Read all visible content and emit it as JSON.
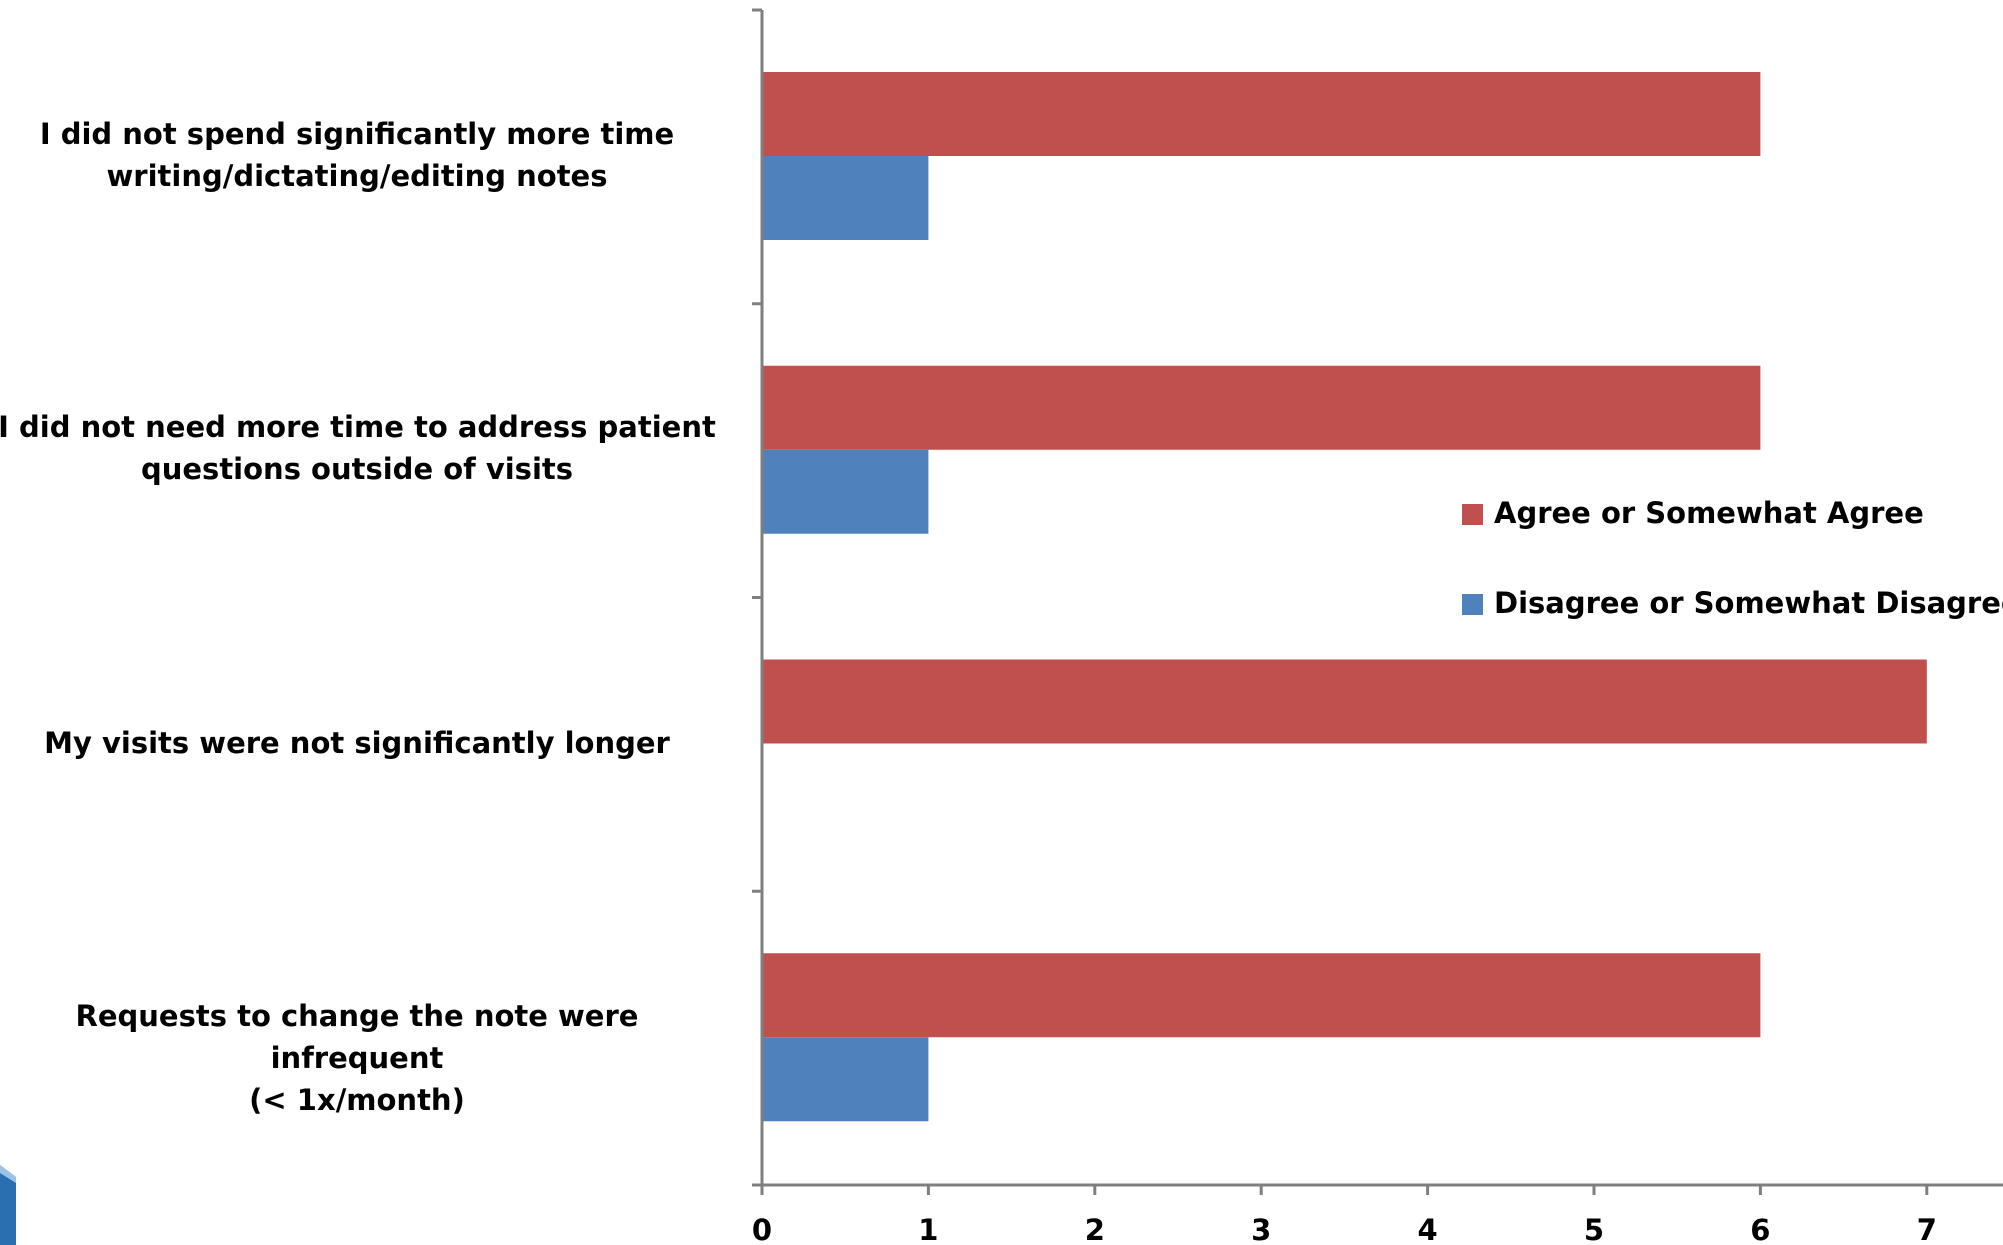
{
  "chart_data": {
    "type": "bar",
    "orientation": "horizontal",
    "categories": [
      "I did not spend significantly more time\nwriting/dictating/editing notes",
      "I did not need more time to address patient\nquestions outside of visits",
      "My visits were not significantly longer",
      "Requests to change the note were infrequent\n(< 1x/month)"
    ],
    "series": [
      {
        "name": "Agree or Somewhat Agree",
        "values": [
          6,
          6,
          7,
          6
        ],
        "color": "#c0504d"
      },
      {
        "name": "Disagree or Somewhat Disagree",
        "values": [
          1,
          1,
          0,
          1
        ],
        "color": "#4f81bd"
      }
    ],
    "xlim": [
      0,
      7
    ],
    "xticks": [
      "0",
      "1",
      "2",
      "3",
      "4",
      "5",
      "6",
      "7"
    ],
    "title": "",
    "xlabel": "",
    "ylabel": "",
    "grid": false,
    "legend_position": "right"
  },
  "axis_color": "#7f7f7f"
}
